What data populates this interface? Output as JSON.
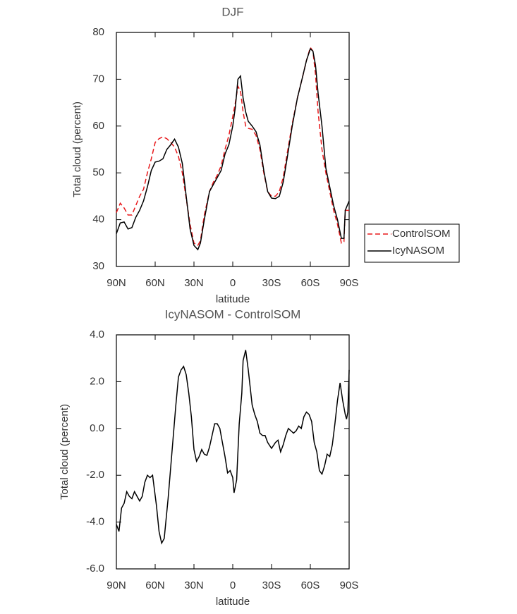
{
  "chart_data": [
    {
      "type": "line",
      "title": "DJF",
      "xlabel": "latitude",
      "ylabel": "Total cloud (percent)",
      "x": [
        90,
        87,
        84,
        81,
        78,
        75,
        72,
        69,
        66,
        63,
        60,
        57,
        54,
        51,
        48,
        45,
        42,
        39,
        36,
        33,
        30,
        27,
        25,
        22,
        18,
        15,
        12,
        9,
        6,
        3,
        0,
        -2,
        -4,
        -6,
        -8,
        -10,
        -12,
        -15,
        -18,
        -21,
        -24,
        -27,
        -30,
        -33,
        -36,
        -39,
        -42,
        -46,
        -50,
        -54,
        -57,
        -60,
        -62,
        -64,
        -66,
        -69,
        -72,
        -75,
        -78,
        -81,
        -84,
        -86,
        -87,
        -90
      ],
      "series": [
        {
          "name": "ControlSOM",
          "color": "#e8191b",
          "line_style": "dashed",
          "values": [
            41.5,
            43.5,
            42.5,
            41,
            41,
            43,
            45,
            46.5,
            50,
            53,
            56.5,
            57.3,
            57.7,
            57.3,
            56.5,
            55.5,
            53.5,
            50,
            44.5,
            39,
            35,
            34.5,
            35.5,
            41,
            46,
            48,
            49.5,
            51.5,
            55,
            58,
            62,
            65,
            68.5,
            67.5,
            63,
            60,
            59.5,
            59.3,
            58,
            55,
            50,
            46,
            45,
            45,
            46,
            49,
            54,
            60.5,
            66,
            70.5,
            74,
            76.8,
            76,
            71,
            63,
            55,
            50,
            46,
            42,
            39,
            35,
            35.3,
            42,
            42
          ]
        },
        {
          "name": "IcyNASOM",
          "color": "#000000",
          "line_style": "solid",
          "values": [
            37,
            39.3,
            39.5,
            38,
            38.3,
            40.5,
            42,
            44,
            47,
            50.5,
            52.3,
            52.5,
            53,
            55,
            56,
            57.2,
            55.5,
            52,
            45,
            38,
            34.5,
            33.6,
            35,
            40,
            46,
            47.5,
            49,
            50.5,
            54,
            56,
            60,
            64,
            70,
            70.7,
            66,
            63,
            61,
            60,
            58.8,
            56,
            50.5,
            46,
            44.6,
            44.5,
            45,
            48,
            53,
            60,
            66,
            70.5,
            74,
            76.5,
            76,
            73,
            67,
            60,
            51,
            47,
            43,
            40,
            36,
            36,
            42,
            44
          ]
        }
      ],
      "xlim": [
        90,
        -90
      ],
      "xticks": [
        {
          "value": 90,
          "label": "90N"
        },
        {
          "value": 60,
          "label": "60N"
        },
        {
          "value": 30,
          "label": "30N"
        },
        0,
        {
          "value": -30,
          "label": "30S"
        },
        {
          "value": -60,
          "label": "60S"
        },
        {
          "value": -90,
          "label": "90S"
        }
      ],
      "ylim": [
        30,
        80
      ],
      "yticks": [
        30,
        40,
        50,
        60,
        70,
        80
      ],
      "legend": "right"
    },
    {
      "type": "line",
      "title": "IcyNASOM - ControlSOM",
      "xlabel": "latitude",
      "ylabel": "Total cloud (percent)",
      "x": [
        90,
        88,
        86,
        84,
        82,
        80,
        78,
        76,
        74,
        72,
        70,
        68,
        66,
        64,
        62,
        59,
        57,
        55,
        53,
        50,
        47,
        44,
        42,
        40,
        38,
        36,
        34,
        32,
        30,
        28,
        26,
        24,
        22,
        20,
        18,
        16,
        14,
        12,
        10,
        8,
        6,
        4,
        2,
        0,
        -1,
        -3,
        -5,
        -7,
        -8,
        -10,
        -12,
        -15,
        -17,
        -19,
        -21,
        -23,
        -25,
        -27,
        -30,
        -33,
        -35,
        -37,
        -39,
        -41,
        -43,
        -45,
        -47,
        -49,
        -51,
        -53,
        -55,
        -57,
        -59,
        -61,
        -63,
        -65,
        -67,
        -69,
        -71,
        -73,
        -75,
        -77,
        -79,
        -81,
        -83,
        -85,
        -87,
        -88,
        -89,
        -90
      ],
      "color": "#000000",
      "values": [
        -4.1,
        -4.4,
        -3.4,
        -3.2,
        -2.7,
        -2.9,
        -3.0,
        -2.7,
        -2.9,
        -3.1,
        -2.9,
        -2.3,
        -2.0,
        -2.1,
        -2.0,
        -3.3,
        -4.4,
        -4.9,
        -4.7,
        -3.0,
        -1.0,
        1.0,
        2.2,
        2.5,
        2.65,
        2.3,
        1.5,
        0.5,
        -0.9,
        -1.4,
        -1.2,
        -0.9,
        -1.1,
        -1.15,
        -0.8,
        -0.3,
        0.2,
        0.2,
        0,
        -0.6,
        -1.2,
        -1.9,
        -1.8,
        -2.1,
        -2.75,
        -2.2,
        0.2,
        1.5,
        2.9,
        3.35,
        2.5,
        1.0,
        0.6,
        0.3,
        -0.2,
        -0.3,
        -0.3,
        -0.6,
        -0.85,
        -0.6,
        -0.5,
        -1.0,
        -0.7,
        -0.3,
        0,
        -0.1,
        -0.2,
        -0.1,
        0.1,
        0,
        0.5,
        0.7,
        0.6,
        0.3,
        -0.6,
        -1.0,
        -1.8,
        -1.95,
        -1.6,
        -1.1,
        -1.2,
        -0.7,
        0.2,
        1.2,
        1.95,
        1.2,
        0.6,
        0.4,
        0.7,
        2.5
      ],
      "xlim": [
        90,
        -90
      ],
      "xticks": [
        {
          "value": 90,
          "label": "90N"
        },
        {
          "value": 60,
          "label": "60N"
        },
        {
          "value": 30,
          "label": "30N"
        },
        0,
        {
          "value": -30,
          "label": "30S"
        },
        {
          "value": -60,
          "label": "60S"
        },
        {
          "value": -90,
          "label": "90S"
        }
      ],
      "ylim": [
        -6,
        4
      ],
      "yticks": [
        {
          "value": -6,
          "label": "-6.0"
        },
        {
          "value": -4,
          "label": "-4.0"
        },
        {
          "value": -2,
          "label": "-2.0"
        },
        {
          "value": 0,
          "label": "0.0"
        },
        {
          "value": 2,
          "label": "2.0"
        },
        {
          "value": 4,
          "label": "4.0"
        }
      ]
    }
  ]
}
